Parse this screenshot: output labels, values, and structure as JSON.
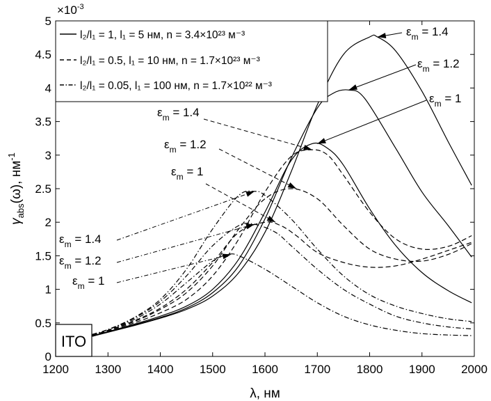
{
  "chart_data": {
    "type": "line",
    "xlabel": "λ, нм",
    "ylabel_symbol": "γ",
    "ylabel_sub": "abs",
    "ylabel_arg": "(ω), нм",
    "ylabel_exp": "-1",
    "exponent_label": "×10",
    "exponent_power": "-3",
    "xlim": [
      1200,
      2000
    ],
    "ylim": [
      0,
      5
    ],
    "xticks": [
      1200,
      1300,
      1400,
      1500,
      1600,
      1700,
      1800,
      1900,
      2000
    ],
    "xtick_labels": [
      "1200",
      "1300",
      "1400",
      "1500",
      "1600",
      "1700",
      "1800",
      "1900",
      "2000"
    ],
    "yticks": [
      0,
      0.5,
      1,
      1.5,
      2,
      2.5,
      3,
      3.5,
      4,
      4.5,
      5
    ],
    "ytick_labels": [
      "0",
      "0.5",
      "1",
      "1.5",
      "2",
      "2.5",
      "3",
      "3.5",
      "4",
      "4.5",
      "5"
    ],
    "grid": false,
    "legend_position": "top-left",
    "material_label": "ITO",
    "legend": [
      {
        "style": "solid",
        "text": "l₂/l₁ = 1, l₁ = 5 нм, n = 3.4×10²³ м⁻³"
      },
      {
        "style": "dashed",
        "text": "l₂/l₁ = 0.5, l₁ = 10 нм, n = 1.7×10²³ м⁻³"
      },
      {
        "style": "dashdot",
        "text": "l₂/l₁ = 0.05, l₁ = 100 нм, n = 1.7×10²² м⁻³"
      }
    ],
    "series": [
      {
        "group": "solid",
        "eps": "1.4",
        "x": [
          1270,
          1300,
          1350,
          1400,
          1450,
          1500,
          1550,
          1600,
          1650,
          1700,
          1750,
          1800,
          1815,
          1850,
          1900,
          1950,
          1995
        ],
        "y": [
          0.3,
          0.36,
          0.46,
          0.57,
          0.7,
          0.9,
          1.25,
          1.85,
          2.75,
          3.75,
          4.5,
          4.76,
          4.76,
          4.55,
          3.95,
          3.2,
          2.55
        ]
      },
      {
        "group": "solid",
        "eps": "1.2",
        "x": [
          1270,
          1300,
          1350,
          1400,
          1450,
          1500,
          1550,
          1600,
          1650,
          1700,
          1730,
          1760,
          1790,
          1850,
          1900,
          1950,
          1995
        ],
        "y": [
          0.3,
          0.37,
          0.47,
          0.58,
          0.72,
          0.95,
          1.35,
          2.05,
          2.95,
          3.7,
          3.92,
          3.97,
          3.85,
          3.1,
          2.45,
          1.95,
          1.48
        ]
      },
      {
        "group": "solid",
        "eps": "1",
        "x": [
          1270,
          1300,
          1350,
          1400,
          1450,
          1500,
          1550,
          1600,
          1650,
          1690,
          1720,
          1750,
          1800,
          1850,
          1900,
          1950,
          1995
        ],
        "y": [
          0.31,
          0.37,
          0.48,
          0.6,
          0.75,
          1.0,
          1.45,
          2.15,
          2.92,
          3.17,
          3.1,
          2.85,
          2.2,
          1.65,
          1.25,
          0.98,
          0.8
        ]
      },
      {
        "group": "dashed",
        "eps": "1.4",
        "x": [
          1270,
          1300,
          1350,
          1400,
          1450,
          1500,
          1550,
          1600,
          1650,
          1690,
          1720,
          1750,
          1800,
          1850,
          1900,
          1950,
          1995
        ],
        "y": [
          0.31,
          0.38,
          0.5,
          0.65,
          0.85,
          1.2,
          1.75,
          2.45,
          2.98,
          3.08,
          3.0,
          2.7,
          2.15,
          1.75,
          1.6,
          1.64,
          1.8
        ]
      },
      {
        "group": "dashed",
        "eps": "1.2",
        "x": [
          1270,
          1300,
          1350,
          1400,
          1450,
          1500,
          1550,
          1600,
          1650,
          1700,
          1750,
          1800,
          1850,
          1900,
          1950,
          1995
        ],
        "y": [
          0.31,
          0.39,
          0.52,
          0.7,
          0.95,
          1.35,
          1.9,
          2.35,
          2.5,
          2.35,
          1.95,
          1.6,
          1.45,
          1.42,
          1.52,
          1.68
        ]
      },
      {
        "group": "dashed",
        "eps": "1",
        "x": [
          1270,
          1300,
          1350,
          1400,
          1450,
          1500,
          1550,
          1600,
          1630,
          1660,
          1700,
          1750,
          1800,
          1850,
          1900,
          1950,
          1995
        ],
        "y": [
          0.31,
          0.39,
          0.53,
          0.72,
          1.0,
          1.4,
          1.85,
          2.0,
          1.95,
          1.8,
          1.55,
          1.4,
          1.33,
          1.35,
          1.45,
          1.58,
          1.7
        ]
      },
      {
        "group": "dashdot",
        "eps": "1.4",
        "x": [
          1270,
          1300,
          1350,
          1400,
          1450,
          1500,
          1550,
          1580,
          1600,
          1650,
          1700,
          1750,
          1800,
          1850,
          1900,
          1950,
          1995
        ],
        "y": [
          0.32,
          0.4,
          0.58,
          0.85,
          1.3,
          1.9,
          2.4,
          2.46,
          2.4,
          2.05,
          1.6,
          1.2,
          0.92,
          0.75,
          0.64,
          0.56,
          0.52
        ]
      },
      {
        "group": "dashdot",
        "eps": "1.2",
        "x": [
          1270,
          1300,
          1350,
          1400,
          1450,
          1500,
          1550,
          1580,
          1620,
          1650,
          1700,
          1750,
          1800,
          1850,
          1900,
          1950,
          1995
        ],
        "y": [
          0.32,
          0.4,
          0.57,
          0.82,
          1.2,
          1.65,
          1.95,
          1.97,
          1.85,
          1.65,
          1.3,
          1.0,
          0.78,
          0.6,
          0.5,
          0.44,
          0.41
        ]
      },
      {
        "group": "dashdot",
        "eps": "1",
        "x": [
          1270,
          1300,
          1350,
          1400,
          1450,
          1500,
          1530,
          1550,
          1600,
          1650,
          1700,
          1750,
          1800,
          1850,
          1900,
          1950,
          1995
        ],
        "y": [
          0.33,
          0.4,
          0.55,
          0.78,
          1.1,
          1.42,
          1.52,
          1.5,
          1.3,
          1.05,
          0.8,
          0.6,
          0.47,
          0.39,
          0.34,
          0.32,
          0.31
        ]
      }
    ],
    "annotations": [
      {
        "eps_sym": "ε",
        "eps_sub": "m",
        "text": " = 1.4",
        "style": "solid",
        "tip": [
          1815,
          4.76
        ]
      },
      {
        "eps_sym": "ε",
        "eps_sub": "m",
        "text": " = 1.2",
        "style": "solid",
        "tip": [
          1760,
          3.97
        ]
      },
      {
        "eps_sym": "ε",
        "eps_sub": "m",
        "text": " = 1",
        "style": "solid",
        "tip": [
          1700,
          3.17
        ]
      },
      {
        "eps_sym": "ε",
        "eps_sub": "m",
        "text": " = 1.4",
        "style": "dashed",
        "tip": [
          1690,
          3.08
        ]
      },
      {
        "eps_sym": "ε",
        "eps_sub": "m",
        "text": " = 1.2",
        "style": "dashed",
        "tip": [
          1660,
          2.5
        ]
      },
      {
        "eps_sym": "ε",
        "eps_sub": "m",
        "text": " = 1",
        "style": "dashed",
        "tip": [
          1620,
          2.0
        ]
      },
      {
        "eps_sym": "ε",
        "eps_sub": "m",
        "text": " = 1.4",
        "style": "dashdot",
        "tip": [
          1580,
          2.46
        ]
      },
      {
        "eps_sym": "ε",
        "eps_sub": "m",
        "text": " = 1.2",
        "style": "dashdot",
        "tip": [
          1580,
          1.97
        ]
      },
      {
        "eps_sym": "ε",
        "eps_sub": "m",
        "text": " = 1",
        "style": "dashdot",
        "tip": [
          1535,
          1.52
        ]
      }
    ]
  }
}
